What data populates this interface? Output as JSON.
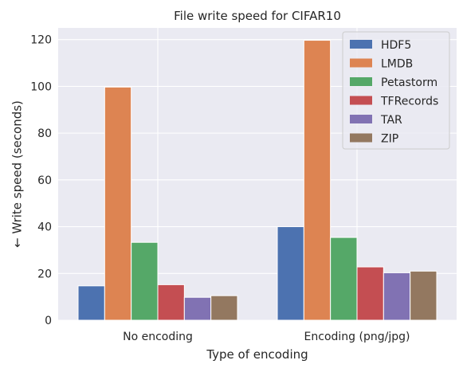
{
  "chart_data": {
    "type": "bar",
    "title": "File write speed for CIFAR10",
    "xlabel": "Type of encoding",
    "ylabel": "← Write speed (seconds)",
    "categories": [
      "No encoding",
      "Encoding (png/jpg)"
    ],
    "ylim": [
      0,
      125
    ],
    "yticks": [
      0,
      20,
      40,
      60,
      80,
      100,
      120
    ],
    "grid": true,
    "legend_position": "top-right",
    "series": [
      {
        "name": "HDF5",
        "color": "#4c72b0",
        "values": [
          14.7,
          40.0
        ]
      },
      {
        "name": "LMDB",
        "color": "#dd8452",
        "values": [
          99.7,
          119.7
        ]
      },
      {
        "name": "Petastorm",
        "color": "#55a868",
        "values": [
          33.3,
          35.4
        ]
      },
      {
        "name": "TFRecords",
        "color": "#c44e52",
        "values": [
          15.2,
          22.8
        ]
      },
      {
        "name": "TAR",
        "color": "#8172b3",
        "values": [
          9.8,
          20.3
        ]
      },
      {
        "name": "ZIP",
        "color": "#937860",
        "values": [
          10.5,
          21.0
        ]
      }
    ]
  },
  "theme": {
    "plot_background": "#eaeaf2",
    "grid_color": "#ffffff"
  }
}
